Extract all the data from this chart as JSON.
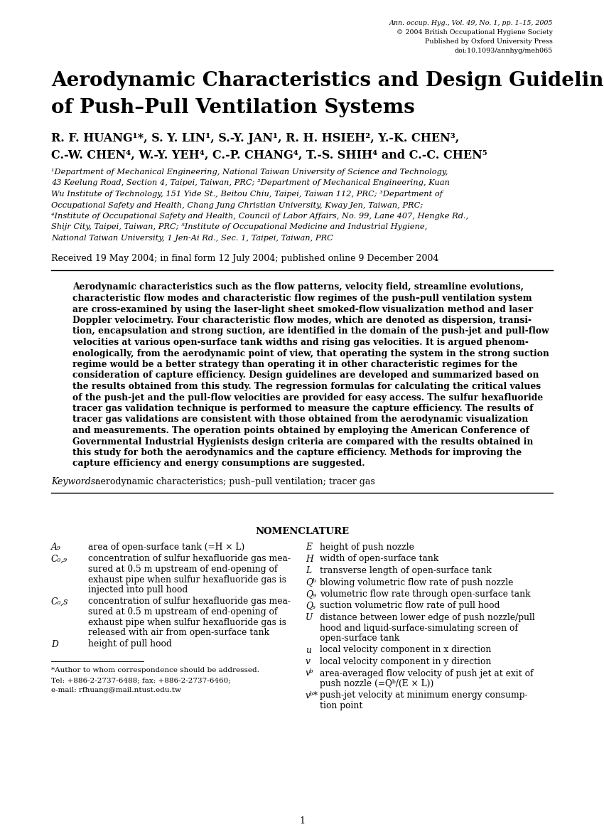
{
  "background_color": "#ffffff",
  "header_journal": "Ann. occup. Hyg., Vol. 49, No. 1, pp. 1–15, 2005",
  "header_line2": "© 2004 British Occupational Hygiene Society",
  "header_line3": "Published by Oxford University Press",
  "header_line4": "doi:10.1093/annhyg/meh065",
  "title_line1": "Aerodynamic Characteristics and Design Guidelines",
  "title_line2": "of Push–Pull Ventilation Systems",
  "received_text": "Received 19 May 2004; in final form 12 July 2004; published online 9 December 2004",
  "abstract_lines": [
    "Aerodynamic characteristics such as the flow patterns, velocity field, streamline evolutions,",
    "characteristic flow modes and characteristic flow regimes of the push–pull ventilation system",
    "are cross-examined by using the laser-light sheet smoked-flow visualization method and laser",
    "Doppler velocimetry. Four characteristic flow modes, which are denoted as dispersion, transi-",
    "tion, encapsulation and strong suction, are identified in the domain of the push-jet and pull-flow",
    "velocities at various open-surface tank widths and rising gas velocities. It is argued phenom-",
    "enologically, from the aerodynamic point of view, that operating the system in the strong suction",
    "regime would be a better strategy than operating it in other characteristic regimes for the",
    "consideration of capture efficiency. Design guidelines are developed and summarized based on",
    "the results obtained from this study. The regression formulas for calculating the critical values",
    "of the push-jet and the pull-flow velocities are provided for easy access. The sulfur hexafluoride",
    "tracer gas validation technique is performed to measure the capture efficiency. The results of",
    "tracer gas validations are consistent with those obtained from the aerodynamic visualization",
    "and measurements. The operation points obtained by employing the American Conference of",
    "Governmental Industrial Hygienists design criteria are compared with the results obtained in",
    "this study for both the aerodynamics and the capture efficiency. Methods for improving the",
    "capture efficiency and energy consumptions are suggested."
  ],
  "nomenclature_title": "NOMENCLATURE",
  "footnote1": "*Author to whom correspondence should be addressed.",
  "footnote2": "Tel: +886-2-2737-6488; fax: +886-2-2737-6460;",
  "footnote3": "e-mail: rfhuang@mail.ntust.edu.tw",
  "page_number": "1"
}
